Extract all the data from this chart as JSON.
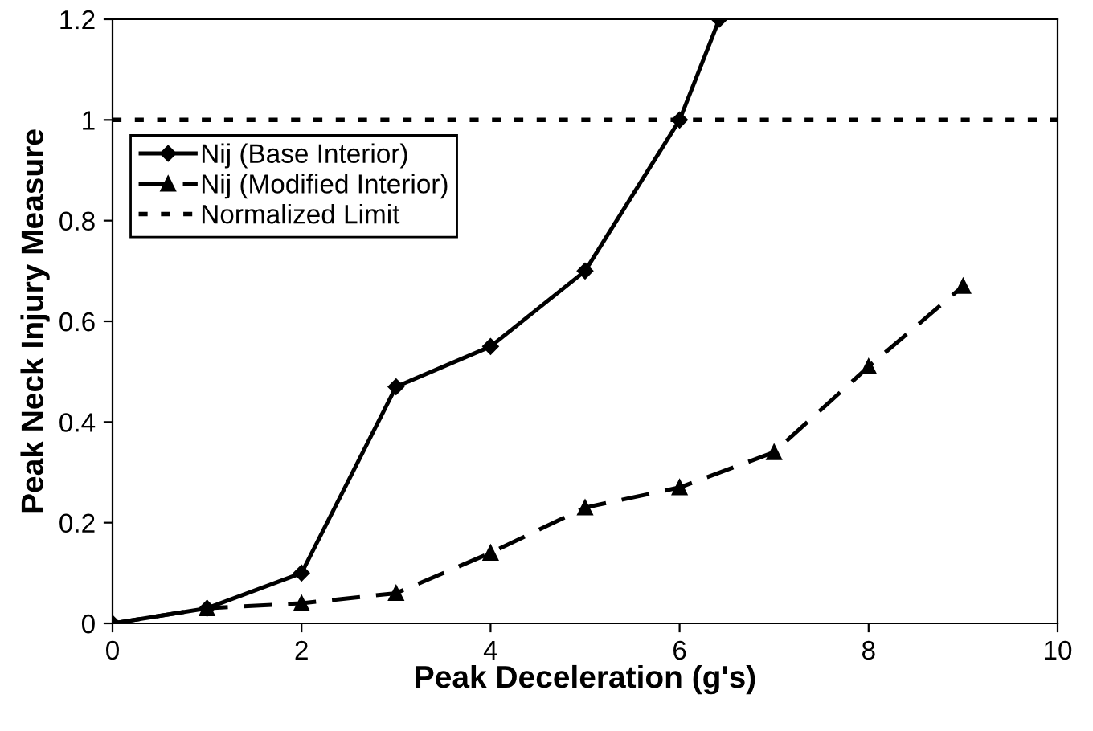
{
  "chart_data": {
    "type": "line",
    "xlabel": "Peak Deceleration (g's)",
    "ylabel": "Peak Neck Injury Measure",
    "xlim": [
      0,
      10
    ],
    "ylim": [
      0,
      1.2
    ],
    "xticks": [
      0,
      2,
      4,
      6,
      8,
      10
    ],
    "yticks": [
      0,
      0.2,
      0.4,
      0.6,
      0.8,
      1,
      1.2
    ],
    "grid": false,
    "legend": "top left",
    "series": [
      {
        "name": "Nij (Base Interior)",
        "color": "#000000",
        "marker": "diamond",
        "line_style": "solid",
        "x": [
          0,
          1,
          2,
          3,
          4,
          5,
          6,
          6.42
        ],
        "values": [
          0,
          0.03,
          0.1,
          0.47,
          0.55,
          0.7,
          1.0,
          1.2
        ]
      },
      {
        "name": "Nij (Modified Interior)",
        "color": "#000000",
        "marker": "triangle",
        "line_style": "dashed",
        "x": [
          0,
          1,
          2,
          3,
          4,
          5,
          6,
          7,
          8,
          9
        ],
        "values": [
          0,
          0.03,
          0.04,
          0.06,
          0.14,
          0.23,
          0.27,
          0.34,
          0.51,
          0.67
        ]
      }
    ],
    "ref_lines": [
      {
        "axis": "y",
        "value": 1,
        "label": "Normalized Limit",
        "color": "#000000",
        "line_style": "dotted"
      }
    ]
  }
}
